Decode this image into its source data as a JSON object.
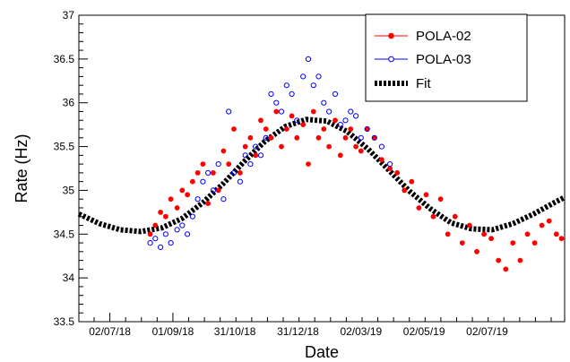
{
  "chart_data": {
    "type": "scatter",
    "xlabel": "Date",
    "ylabel": "Rate (Hz)",
    "x_ticks": [
      "02/07/18",
      "01/09/18",
      "31/10/18",
      "31/12/18",
      "02/03/19",
      "02/05/19",
      "02/07/19"
    ],
    "y_ticks": [
      "33.5",
      "34",
      "34.5",
      "35",
      "35.5",
      "36",
      "36.5",
      "37"
    ],
    "xlim": [
      "2018-06-02",
      "2019-09-15"
    ],
    "ylim": [
      33.5,
      37
    ],
    "legend": {
      "position": "top-right"
    },
    "grid": false,
    "series": [
      {
        "name": "POLA-02",
        "marker": "filled-circle",
        "color": "#ff0000",
        "x": [
          "2018-08-10",
          "2018-08-15",
          "2018-08-20",
          "2018-08-25",
          "2018-08-30",
          "2018-09-05",
          "2018-09-10",
          "2018-09-15",
          "2018-09-20",
          "2018-09-25",
          "2018-09-30",
          "2018-10-05",
          "2018-10-10",
          "2018-10-15",
          "2018-10-20",
          "2018-10-25",
          "2018-10-30",
          "2018-11-05",
          "2018-11-10",
          "2018-11-15",
          "2018-11-20",
          "2018-11-25",
          "2018-11-30",
          "2018-12-05",
          "2018-12-10",
          "2018-12-15",
          "2018-12-20",
          "2018-12-25",
          "2018-12-30",
          "2019-01-05",
          "2019-01-10",
          "2019-01-15",
          "2019-01-20",
          "2019-01-25",
          "2019-01-30",
          "2019-02-05",
          "2019-02-10",
          "2019-02-15",
          "2019-02-20",
          "2019-02-25",
          "2019-03-02",
          "2019-03-08",
          "2019-03-15",
          "2019-03-22",
          "2019-03-30",
          "2019-04-06",
          "2019-04-13",
          "2019-04-20",
          "2019-04-27",
          "2019-05-04",
          "2019-05-11",
          "2019-05-18",
          "2019-05-25",
          "2019-06-01",
          "2019-06-08",
          "2019-06-15",
          "2019-06-22",
          "2019-06-29",
          "2019-07-06",
          "2019-07-13",
          "2019-07-20",
          "2019-07-27",
          "2019-08-03",
          "2019-08-10",
          "2019-08-17",
          "2019-08-24",
          "2019-08-31",
          "2019-09-07",
          "2019-09-12"
        ],
        "y": [
          34.5,
          34.6,
          34.75,
          34.7,
          34.9,
          34.8,
          35.0,
          34.95,
          35.1,
          35.2,
          35.3,
          34.85,
          35.2,
          35.0,
          35.45,
          35.3,
          35.7,
          35.2,
          35.5,
          35.6,
          35.4,
          35.8,
          35.7,
          35.6,
          35.9,
          35.5,
          35.7,
          35.85,
          35.6,
          35.75,
          35.3,
          35.9,
          35.6,
          35.7,
          35.5,
          35.8,
          35.4,
          35.6,
          35.7,
          35.5,
          35.45,
          35.7,
          35.6,
          35.35,
          35.25,
          35.2,
          35.0,
          35.1,
          34.8,
          34.95,
          34.7,
          34.9,
          34.5,
          34.7,
          34.4,
          34.6,
          34.3,
          34.5,
          34.45,
          34.2,
          34.1,
          34.4,
          34.2,
          34.5,
          34.4,
          34.6,
          34.65,
          34.5,
          34.45
        ]
      },
      {
        "name": "POLA-03",
        "marker": "open-circle",
        "color": "#0000ff",
        "x": [
          "2018-08-10",
          "2018-08-15",
          "2018-08-20",
          "2018-08-25",
          "2018-08-30",
          "2018-09-05",
          "2018-09-10",
          "2018-09-15",
          "2018-09-20",
          "2018-09-25",
          "2018-09-30",
          "2018-10-05",
          "2018-10-10",
          "2018-10-15",
          "2018-10-20",
          "2018-10-25",
          "2018-10-30",
          "2018-11-05",
          "2018-11-10",
          "2018-11-15",
          "2018-11-20",
          "2018-11-25",
          "2018-11-30",
          "2018-12-05",
          "2018-12-10",
          "2018-12-15",
          "2018-12-20",
          "2018-12-25",
          "2018-12-30",
          "2019-01-05",
          "2019-01-10",
          "2019-01-15",
          "2019-01-20",
          "2019-01-25",
          "2019-01-30",
          "2019-02-05",
          "2019-02-10",
          "2019-02-15",
          "2019-02-20",
          "2019-02-25",
          "2019-03-02",
          "2019-03-08",
          "2019-03-15",
          "2019-03-22",
          "2019-03-30"
        ],
        "y": [
          34.4,
          34.45,
          34.35,
          34.5,
          34.4,
          34.55,
          34.6,
          34.5,
          34.7,
          34.9,
          35.1,
          35.2,
          35.0,
          35.3,
          34.9,
          35.9,
          35.2,
          35.1,
          35.4,
          35.3,
          35.5,
          35.4,
          35.6,
          36.1,
          36.0,
          35.9,
          36.2,
          36.1,
          35.8,
          36.3,
          36.5,
          36.2,
          36.3,
          36.0,
          35.9,
          36.1,
          35.75,
          35.8,
          35.9,
          35.85,
          35.6,
          35.7,
          35.6,
          35.5,
          35.3
        ]
      },
      {
        "name": "Fit",
        "style": "thick-dashed-line",
        "color": "#000000",
        "x": [
          "2018-06-02",
          "2018-06-22",
          "2018-07-12",
          "2018-08-01",
          "2018-08-21",
          "2018-09-10",
          "2018-09-30",
          "2018-10-20",
          "2018-11-09",
          "2018-11-29",
          "2018-12-19",
          "2019-01-08",
          "2019-01-28",
          "2019-02-17",
          "2019-03-09",
          "2019-03-29",
          "2019-04-18",
          "2019-05-08",
          "2019-05-28",
          "2019-06-17",
          "2019-07-07",
          "2019-07-27",
          "2019-08-16",
          "2019-09-05",
          "2019-09-15"
        ],
        "y": [
          34.73,
          34.62,
          34.55,
          34.53,
          34.57,
          34.68,
          34.86,
          35.08,
          35.33,
          35.56,
          35.73,
          35.81,
          35.79,
          35.67,
          35.47,
          35.23,
          34.99,
          34.79,
          34.63,
          34.56,
          34.55,
          34.62,
          34.73,
          34.86,
          34.92
        ]
      }
    ]
  }
}
